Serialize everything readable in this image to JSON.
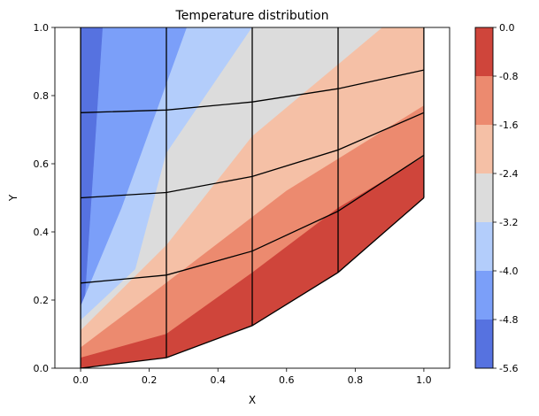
{
  "chart_data": {
    "type": "contourf",
    "title": "Temperature distribution",
    "xlabel": "X",
    "ylabel": "Y",
    "xlim": [
      -0.075,
      1.075
    ],
    "ylim": [
      0.0,
      1.0
    ],
    "xticks": [
      0.0,
      0.2,
      0.4,
      0.6,
      0.8,
      1.0
    ],
    "xtick_labels": [
      "0.0",
      "0.2",
      "0.4",
      "0.6",
      "0.8",
      "1.0"
    ],
    "yticks": [
      0.0,
      0.2,
      0.4,
      0.6,
      0.8,
      1.0
    ],
    "ytick_labels": [
      "0.0",
      "0.2",
      "0.4",
      "0.6",
      "0.8",
      "1.0"
    ],
    "grid": false,
    "colorbar": {
      "levels": [
        -5.6,
        -4.8,
        -4.0,
        -3.2,
        -2.4,
        -1.6,
        -0.8,
        0.0
      ],
      "tick_labels": [
        "-5.6",
        "-4.8",
        "-4.0",
        "-3.2",
        "-2.4",
        "-1.6",
        "-0.8",
        "0.0"
      ],
      "colors": [
        "#5672e0",
        "#7b9ff9",
        "#b3cdfb",
        "#dcdcdc",
        "#f5c0a6",
        "#ec8a6f",
        "#cf453b"
      ]
    },
    "mesh": {
      "x": [
        0.0,
        0.25,
        0.5,
        0.75,
        1.0
      ],
      "y_bottom": [
        0.0,
        0.031,
        0.125,
        0.281,
        0.5
      ],
      "rows": 4
    },
    "contour_bands": [
      {
        "level_index": 0,
        "points": [
          [
            0.0,
            0.0
          ],
          [
            0.0,
            1.0
          ],
          [
            0.065,
            1.0
          ],
          [
            0.0,
            0.0
          ]
        ]
      },
      {
        "level_index": 1,
        "points": [
          [
            0.065,
            1.0
          ],
          [
            0.31,
            1.0
          ],
          [
            0.12,
            0.47
          ],
          [
            0.0,
            0.18
          ],
          [
            0.0,
            0.0
          ]
        ]
      },
      {
        "level_index": 2,
        "points": [
          [
            0.31,
            1.0
          ],
          [
            0.5,
            1.0
          ],
          [
            0.25,
            0.63
          ],
          [
            0.16,
            0.29
          ],
          [
            0.0,
            0.14
          ],
          [
            0.0,
            0.18
          ],
          [
            0.12,
            0.47
          ]
        ]
      },
      {
        "level_index": 3,
        "points": [
          [
            0.5,
            1.0
          ],
          [
            0.88,
            1.0
          ],
          [
            0.5,
            0.68
          ],
          [
            0.25,
            0.36
          ],
          [
            0.0,
            0.11
          ],
          [
            0.0,
            0.14
          ],
          [
            0.16,
            0.29
          ],
          [
            0.25,
            0.63
          ]
        ]
      },
      {
        "level_index": 4,
        "points": [
          [
            0.88,
            1.0
          ],
          [
            1.0,
            1.0
          ],
          [
            1.0,
            0.77
          ],
          [
            0.6,
            0.52
          ],
          [
            0.25,
            0.25
          ],
          [
            0.0,
            0.06
          ],
          [
            0.0,
            0.11
          ],
          [
            0.25,
            0.36
          ],
          [
            0.5,
            0.68
          ]
        ]
      },
      {
        "level_index": 5,
        "points": [
          [
            1.0,
            0.77
          ],
          [
            1.0,
            0.62
          ],
          [
            0.75,
            0.47
          ],
          [
            0.5,
            0.28
          ],
          [
            0.25,
            0.1
          ],
          [
            0.0,
            0.03
          ],
          [
            0.0,
            0.06
          ],
          [
            0.25,
            0.25
          ],
          [
            0.6,
            0.52
          ]
        ]
      },
      {
        "level_index": 6,
        "points": [
          [
            1.0,
            0.62
          ],
          [
            1.0,
            0.5
          ],
          [
            0.75,
            0.281
          ],
          [
            0.5,
            0.125
          ],
          [
            0.25,
            0.031
          ],
          [
            0.0,
            0.0
          ],
          [
            0.0,
            0.03
          ],
          [
            0.25,
            0.1
          ],
          [
            0.5,
            0.28
          ],
          [
            0.75,
            0.47
          ]
        ]
      }
    ]
  }
}
